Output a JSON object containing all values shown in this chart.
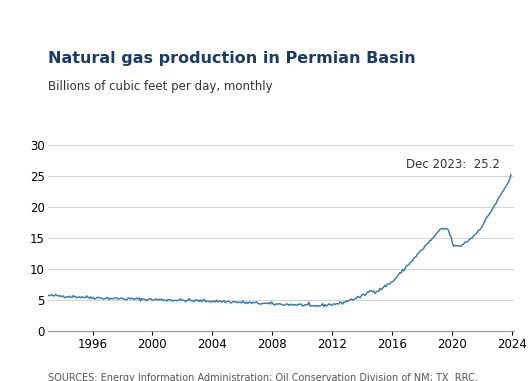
{
  "title": "Natural gas production in Permian Basin",
  "subtitle": "Billions of cubic feet per day, monthly",
  "source_text": "SOURCES: Energy Information Administration; Oil Conservation Division of NM; TX  RRC.",
  "annotation": "Dec 2023:  25.2",
  "title_color": "#1a3a6b",
  "line_color": "#2E75B6",
  "bg_color": "#FFFFFF",
  "ylim": [
    0,
    30
  ],
  "yticks": [
    0,
    5,
    10,
    15,
    20,
    25,
    30
  ],
  "x_start_year": 1993,
  "x_end_year": 2024
}
